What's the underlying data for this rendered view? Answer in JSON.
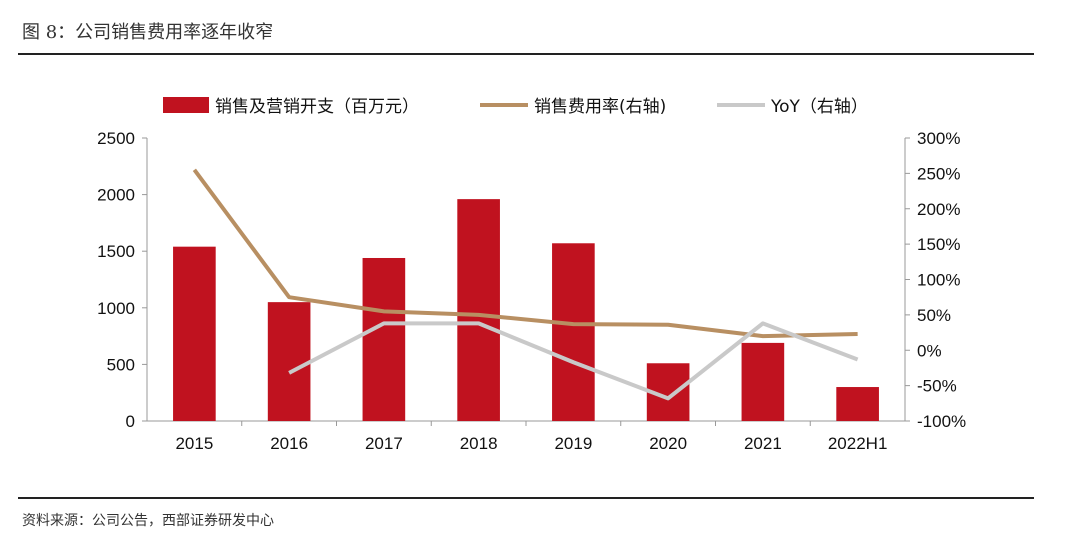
{
  "figure": {
    "title": "图 8：公司销售费用率逐年收窄",
    "source": "资料来源：公司公告，西部证券研发中心"
  },
  "colors": {
    "bar": "#c0121f",
    "ratio": "#b88f62",
    "yoy": "#c9c9c9",
    "axis": "#999999"
  },
  "chart_data": {
    "type": "bar",
    "categories": [
      "2015",
      "2016",
      "2017",
      "2018",
      "2019",
      "2020",
      "2021",
      "2022H1"
    ],
    "ylim_left": [
      0,
      2500
    ],
    "ylim_right": [
      -100,
      300
    ],
    "left_ticks": [
      "0",
      "500",
      "1000",
      "1500",
      "2000",
      "2500"
    ],
    "right_ticks": [
      "-100%",
      "-50%",
      "0%",
      "50%",
      "100%",
      "150%",
      "200%",
      "250%",
      "300%"
    ],
    "grid": false,
    "legend_position": "top",
    "series": [
      {
        "name": "销售及营销开支（百万元）",
        "type": "bar",
        "axis": "left",
        "values": [
          1540,
          1050,
          1440,
          1960,
          1570,
          510,
          690,
          300
        ]
      },
      {
        "name": "销售费用率(右轴)",
        "type": "line",
        "axis": "right",
        "values": [
          255,
          75,
          55,
          50,
          37,
          36,
          20,
          23
        ]
      },
      {
        "name": "YoY（右轴）",
        "type": "line",
        "axis": "right",
        "values": [
          null,
          -32,
          38,
          38,
          -17,
          -68,
          38,
          -13
        ]
      }
    ]
  }
}
